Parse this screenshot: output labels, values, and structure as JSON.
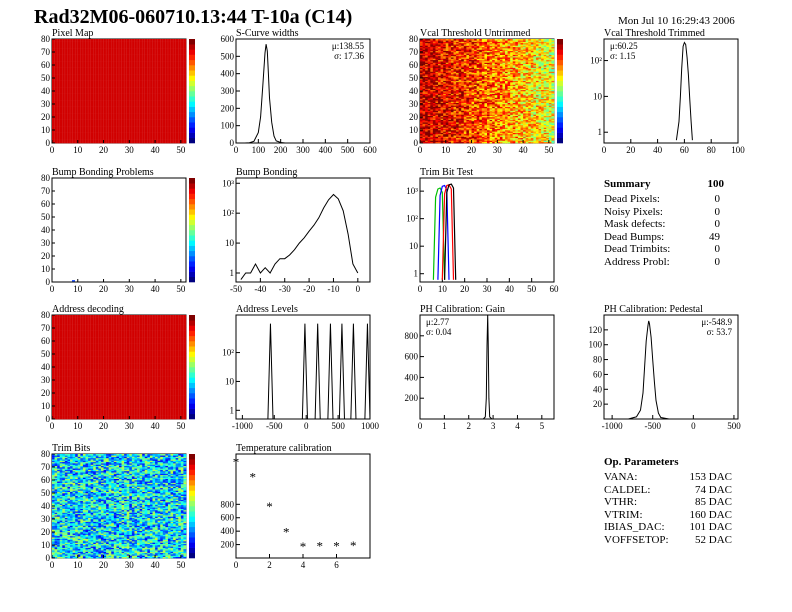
{
  "title": "Rad32M06-060710.13:44 T-10a (C14)",
  "date": "Mon Jul 10 16:29:43 2006",
  "summary": {
    "heading": "Summary",
    "count": "100",
    "rows": [
      {
        "label": "Dead Pixels:",
        "value": "0"
      },
      {
        "label": "Noisy Pixels:",
        "value": "0"
      },
      {
        "label": "Mask defects:",
        "value": "0"
      },
      {
        "label": "Dead Bumps:",
        "value": "49"
      },
      {
        "label": "Dead Trimbits:",
        "value": "0"
      },
      {
        "label": "Address Probl:",
        "value": "0"
      }
    ]
  },
  "op_params": {
    "heading": "Op. Parameters",
    "rows": [
      {
        "label": "VANA:",
        "value": "153 DAC"
      },
      {
        "label": "CALDEL:",
        "value": "74 DAC"
      },
      {
        "label": "VTHR:",
        "value": "85 DAC"
      },
      {
        "label": "VTRIM:",
        "value": "160 DAC"
      },
      {
        "label": "IBIAS_DAC:",
        "value": "101 DAC"
      },
      {
        "label": "VOFFSETOP:",
        "value": "52 DAC"
      }
    ]
  },
  "chart_data": [
    {
      "id": "pixel-map",
      "type": "heatmap",
      "title": "Pixel Map",
      "xlim": [
        0,
        52
      ],
      "ylim": [
        0,
        80
      ],
      "xticks": [
        "0",
        "10",
        "20",
        "30",
        "40",
        "50"
      ],
      "yticks": [
        "0",
        "10",
        "20",
        "30",
        "40",
        "50",
        "60",
        "70",
        "80"
      ],
      "fill": "uniform",
      "base_value": 0.92,
      "colorbar": true
    },
    {
      "id": "s-curve",
      "type": "histogram",
      "title": "S-Curve widths",
      "xlim": [
        0,
        600
      ],
      "ylim": [
        0,
        600
      ],
      "xticks": [
        "0",
        "100",
        "200",
        "300",
        "400",
        "500",
        "600"
      ],
      "yticks": [
        "0",
        "100",
        "200",
        "300",
        "400",
        "500",
        "600"
      ],
      "x": [
        40,
        60,
        80,
        100,
        110,
        120,
        130,
        135,
        140,
        145,
        150,
        160,
        170,
        180,
        200,
        220
      ],
      "y": [
        0,
        2,
        10,
        60,
        150,
        330,
        520,
        570,
        530,
        400,
        260,
        120,
        40,
        12,
        3,
        0
      ],
      "stats": [
        "μ:138.55",
        "σ: 17.36"
      ]
    },
    {
      "id": "vcal-untrimmed",
      "type": "heatmap",
      "title": "Vcal Threshold Untrimmed",
      "xlim": [
        0,
        52
      ],
      "ylim": [
        0,
        80
      ],
      "xticks": [
        "0",
        "10",
        "20",
        "30",
        "40",
        "50"
      ],
      "yticks": [
        "0",
        "10",
        "20",
        "30",
        "40",
        "50",
        "60",
        "70",
        "80"
      ],
      "fill": "gradient",
      "base_value": 0.7,
      "colorbar": true
    },
    {
      "id": "vcal-trimmed",
      "type": "histogram",
      "title": "Vcal Threshold Trimmed",
      "xlim": [
        0,
        100
      ],
      "ylim": [
        0.5,
        400
      ],
      "log": true,
      "xticks": [
        "0",
        "20",
        "40",
        "60",
        "80",
        "100"
      ],
      "yticks": [
        "1",
        "10",
        "10²"
      ],
      "x": [
        54,
        56,
        57,
        58,
        59,
        60,
        61,
        62,
        63,
        64,
        65,
        66
      ],
      "y": [
        0.6,
        2,
        10,
        60,
        250,
        320,
        280,
        120,
        40,
        8,
        2,
        0.6
      ],
      "stats": [
        "μ:60.25",
        "σ: 1.15"
      ]
    },
    {
      "id": "bump-problems",
      "type": "heatmap",
      "title": "Bump Bonding Problems",
      "xlim": [
        0,
        52
      ],
      "ylim": [
        0,
        80
      ],
      "xticks": [
        "0",
        "10",
        "20",
        "30",
        "40",
        "50"
      ],
      "yticks": [
        "0",
        "10",
        "20",
        "30",
        "40",
        "50",
        "60",
        "70",
        "80"
      ],
      "fill": "empty",
      "colorbar": true
    },
    {
      "id": "bump-bonding",
      "type": "histogram",
      "title": "Bump Bonding",
      "xlim": [
        -50,
        5
      ],
      "ylim": [
        0.5,
        1500
      ],
      "log": true,
      "xticks": [
        "-50",
        "-40",
        "-30",
        "-20",
        "-10",
        "0"
      ],
      "yticks": [
        "1",
        "10",
        "10²",
        "10³"
      ],
      "x": [
        -48,
        -46,
        -44,
        -42,
        -40,
        -38,
        -36,
        -34,
        -32,
        -30,
        -28,
        -26,
        -24,
        -22,
        -20,
        -18,
        -16,
        -14,
        -12,
        -10,
        -8,
        -6,
        -4,
        -2,
        0
      ],
      "y": [
        0.6,
        1,
        1,
        2,
        1,
        1.5,
        1,
        2,
        3,
        3,
        4,
        6,
        10,
        15,
        25,
        40,
        70,
        150,
        280,
        420,
        300,
        120,
        20,
        2,
        1
      ]
    },
    {
      "id": "trim-bit-test",
      "type": "line",
      "title": "Trim Bit Test",
      "xlim": [
        0,
        60
      ],
      "ylim": [
        0.5,
        3000
      ],
      "log": true,
      "xticks": [
        "0",
        "10",
        "20",
        "30",
        "40",
        "50",
        "60"
      ],
      "yticks": [
        "1",
        "10",
        "10²",
        "10³"
      ],
      "series": [
        {
          "color": "#00c000",
          "x": [
            6,
            7,
            8,
            9,
            10,
            11
          ],
          "y": [
            0.6,
            600,
            1200,
            1300,
            900,
            0.6
          ]
        },
        {
          "color": "#0000ff",
          "x": [
            8,
            9,
            10,
            11,
            12,
            13
          ],
          "y": [
            0.6,
            700,
            1500,
            1600,
            1100,
            0.6
          ]
        },
        {
          "color": "#ff0000",
          "x": [
            10,
            11,
            12,
            13,
            14,
            15
          ],
          "y": [
            0.6,
            800,
            1600,
            1700,
            1200,
            0.6
          ]
        },
        {
          "color": "#000000",
          "x": [
            11,
            12,
            13,
            14,
            15,
            16
          ],
          "y": [
            0.6,
            900,
            1700,
            1800,
            1300,
            0.6
          ]
        }
      ]
    },
    {
      "id": "address-decoding",
      "type": "heatmap",
      "title": "Address decoding",
      "xlim": [
        0,
        52
      ],
      "ylim": [
        0,
        80
      ],
      "xticks": [
        "0",
        "10",
        "20",
        "30",
        "40",
        "50"
      ],
      "yticks": [
        "0",
        "10",
        "20",
        "30",
        "40",
        "50",
        "60",
        "70",
        "80"
      ],
      "fill": "uniform",
      "base_value": 0.92,
      "colorbar": true
    },
    {
      "id": "address-levels",
      "type": "histogram",
      "title": "Address Levels",
      "xlim": [
        -1100,
        1000
      ],
      "ylim": [
        0.5,
        2000
      ],
      "log": true,
      "xticks": [
        "-1000",
        "-500",
        "0",
        "500",
        "1000"
      ],
      "yticks": [
        "1",
        "10",
        "10²"
      ],
      "peaks": [
        -560,
        -20,
        180,
        380,
        560,
        740,
        960
      ],
      "peak_height": 1000
    },
    {
      "id": "ph-gain",
      "type": "histogram",
      "title": "PH Calibration: Gain",
      "xlim": [
        0,
        5.5
      ],
      "ylim": [
        0,
        1000
      ],
      "xticks": [
        "0",
        "1",
        "2",
        "3",
        "4",
        "5"
      ],
      "yticks": [
        "200",
        "400",
        "600",
        "800"
      ],
      "x": [
        2.6,
        2.68,
        2.72,
        2.75,
        2.78,
        2.8,
        2.83,
        2.86,
        2.95
      ],
      "y": [
        0,
        20,
        200,
        700,
        1000,
        750,
        200,
        20,
        0
      ],
      "stats": [
        "μ:2.77",
        "σ: 0.04"
      ]
    },
    {
      "id": "ph-pedestal",
      "type": "histogram",
      "title": "PH Calibration: Pedestal",
      "xlim": [
        -1100,
        550
      ],
      "ylim": [
        0,
        140
      ],
      "xticks": [
        "-1000",
        "-500",
        "0",
        "500"
      ],
      "yticks": [
        "20",
        "40",
        "60",
        "80",
        "100",
        "120"
      ],
      "x": [
        -800,
        -700,
        -650,
        -620,
        -600,
        -580,
        -560,
        -550,
        -540,
        -520,
        -500,
        -480,
        -460,
        -430,
        -400,
        -300
      ],
      "y": [
        0,
        3,
        12,
        35,
        70,
        105,
        125,
        132,
        128,
        110,
        80,
        50,
        25,
        8,
        2,
        0
      ],
      "stats": [
        "μ:-548.9",
        "σ: 53.7"
      ]
    },
    {
      "id": "trim-bits",
      "type": "heatmap",
      "title": "Trim Bits",
      "xlim": [
        0,
        52
      ],
      "ylim": [
        0,
        80
      ],
      "xticks": [
        "0",
        "10",
        "20",
        "30",
        "40",
        "50"
      ],
      "yticks": [
        "0",
        "10",
        "20",
        "30",
        "40",
        "50",
        "60",
        "70",
        "80"
      ],
      "fill": "noise",
      "base_value": 0.35,
      "colorbar": true
    },
    {
      "id": "temperature",
      "type": "scatter",
      "title": "Temperature calibration",
      "xlim": [
        0,
        8
      ],
      "ylim": [
        0,
        1550
      ],
      "xticks": [
        "0",
        "2",
        "4",
        "6"
      ],
      "yticks": [
        "200",
        "400",
        "600",
        "800"
      ],
      "x": [
        0,
        1,
        2,
        3,
        4,
        5,
        6,
        7
      ],
      "y": [
        1420,
        1200,
        760,
        380,
        165,
        170,
        170,
        180
      ]
    }
  ]
}
